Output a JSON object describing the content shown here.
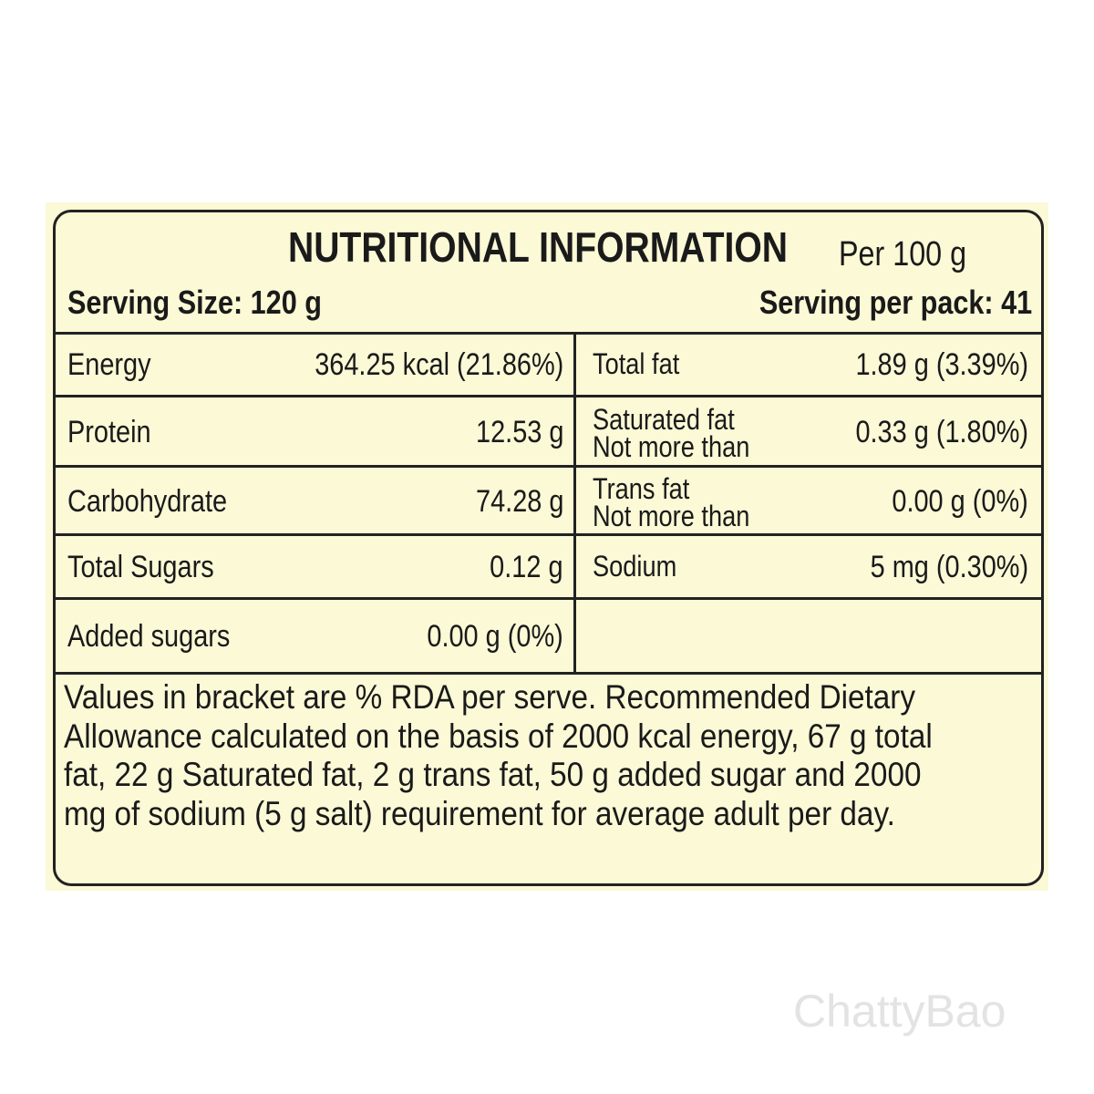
{
  "header": {
    "title": "NUTRITIONAL INFORMATION",
    "basis": "Per 100 g",
    "serving_size": "Serving Size: 120 g",
    "servings_per_pack": "Serving per pack: 41"
  },
  "table": {
    "rows": [
      {
        "left_label": "Energy",
        "left_value": "364.25 kcal (21.86%)",
        "right_label": [
          "Total fat"
        ],
        "right_value": "1.89 g (3.39%)"
      },
      {
        "left_label": "Protein",
        "left_value": "12.53 g",
        "right_label": [
          "Saturated fat",
          "Not more than"
        ],
        "right_value": "0.33 g (1.80%)"
      },
      {
        "left_label": "Carbohydrate",
        "left_value": "74.28 g",
        "right_label": [
          "Trans fat",
          "Not more than"
        ],
        "right_value": "0.00 g (0%)"
      },
      {
        "left_label": "Total Sugars",
        "left_value": "0.12 g",
        "right_label": [
          "Sodium"
        ],
        "right_value": "5 mg (0.30%)"
      },
      {
        "left_label": "Added sugars",
        "left_value": "0.00 g (0%)"
      }
    ]
  },
  "footnote": [
    "Values in bracket are % RDA per serve. Recommended Dietary",
    "Allowance calculated on the basis of 2000 kcal energy, 67 g total",
    "fat, 22 g Saturated fat, 2 g trans fat, 50 g added sugar and 2000",
    "mg of sodium (5 g salt) requirement for average adult per day."
  ],
  "watermark": "ChattyBao"
}
